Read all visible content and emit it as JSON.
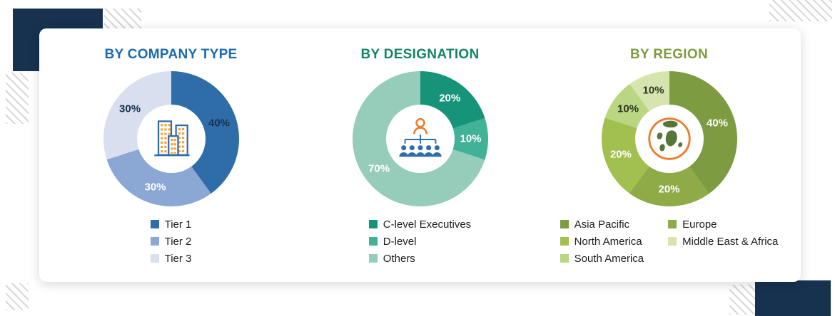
{
  "page": {
    "background": "#ffffff",
    "accent_navy": "#16324f"
  },
  "chart_data": [
    {
      "type": "donut",
      "title": "BY COMPANY TYPE",
      "title_color": "#1a6bb2",
      "icon": "buildings-icon",
      "categories": [
        "Tier 1",
        "Tier 2",
        "Tier 3"
      ],
      "values": [
        40,
        30,
        30
      ],
      "colors": [
        "#2f6da8",
        "#8ba7d4",
        "#d9dfee"
      ],
      "label_colors": [
        "#16324f",
        "#ffffff",
        "#16324f"
      ],
      "legend_columns": 1,
      "legend": [
        {
          "label": "Tier 1",
          "color": "#2f6da8"
        },
        {
          "label": "Tier 2",
          "color": "#8ba7d4"
        },
        {
          "label": "Tier 3",
          "color": "#d9dfee"
        }
      ]
    },
    {
      "type": "donut",
      "title": "BY DESIGNATION",
      "title_color": "#12875f",
      "icon": "org-chart-icon",
      "categories": [
        "C-level Executives",
        "D-level",
        "Others"
      ],
      "values": [
        20,
        10,
        70
      ],
      "colors": [
        "#17937a",
        "#41b198",
        "#96ccba"
      ],
      "label_colors": [
        "#ffffff",
        "#ffffff",
        "#ffffff"
      ],
      "legend_columns": 1,
      "legend": [
        {
          "label": "C-level Executives",
          "color": "#17937a"
        },
        {
          "label": "D-level",
          "color": "#41b198"
        },
        {
          "label": "Others",
          "color": "#96ccba"
        }
      ]
    },
    {
      "type": "donut",
      "title": "BY REGION",
      "title_color": "#7e9d3e",
      "icon": "globe-icon",
      "categories": [
        "Asia Pacific",
        "Europe",
        "North America",
        "South America",
        "Middle East & Africa"
      ],
      "values": [
        40,
        20,
        20,
        10,
        10
      ],
      "colors": [
        "#7d9c42",
        "#8fab48",
        "#a2c04f",
        "#b9d683",
        "#d6e4ae"
      ],
      "label_colors": [
        "#ffffff",
        "#ffffff",
        "#ffffff",
        "#30381f",
        "#30381f"
      ],
      "legend_columns": 2,
      "legend": [
        {
          "label": "Asia Pacific",
          "color": "#7d9c42"
        },
        {
          "label": "Europe",
          "color": "#8fab48"
        },
        {
          "label": "North America",
          "color": "#a2c04f"
        },
        {
          "label": "Middle East & Africa",
          "color": "#d6e4ae"
        },
        {
          "label": "South America",
          "color": "#b9d683"
        }
      ]
    }
  ]
}
